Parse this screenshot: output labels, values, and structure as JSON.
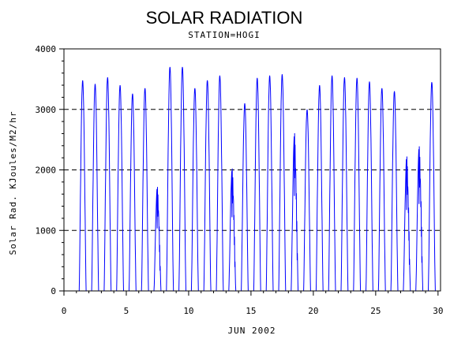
{
  "chart_data": {
    "type": "line",
    "title": "SOLAR RADIATION",
    "subtitle": "STATION=HOGI",
    "xlabel": "JUN 2002",
    "ylabel": "Solar Rad. KJoules/M2/hr",
    "xlim": [
      0,
      30.2
    ],
    "ylim": [
      0,
      4000
    ],
    "x_ticks": [
      0,
      5,
      10,
      15,
      20,
      25,
      30
    ],
    "y_ticks": [
      0,
      1000,
      2000,
      3000,
      4000
    ],
    "grid": "horizontal dashed",
    "daily_peaks": [
      {
        "day": 1,
        "peak": 3480
      },
      {
        "day": 2,
        "peak": 3420
      },
      {
        "day": 3,
        "peak": 3530
      },
      {
        "day": 4,
        "peak": 3400
      },
      {
        "day": 5,
        "peak": 3260
      },
      {
        "day": 6,
        "peak": 3350
      },
      {
        "day": 7,
        "peak": 1740
      },
      {
        "day": 8,
        "peak": 3700
      },
      {
        "day": 9,
        "peak": 3700
      },
      {
        "day": 10,
        "peak": 3350
      },
      {
        "day": 11,
        "peak": 3480
      },
      {
        "day": 12,
        "peak": 3560
      },
      {
        "day": 13,
        "peak": 2050
      },
      {
        "day": 14,
        "peak": 3100
      },
      {
        "day": 15,
        "peak": 3520
      },
      {
        "day": 16,
        "peak": 3560
      },
      {
        "day": 17,
        "peak": 3580
      },
      {
        "day": 18,
        "peak": 2640
      },
      {
        "day": 19,
        "peak": 3000
      },
      {
        "day": 20,
        "peak": 3400
      },
      {
        "day": 21,
        "peak": 3560
      },
      {
        "day": 22,
        "peak": 3530
      },
      {
        "day": 23,
        "peak": 3520
      },
      {
        "day": 24,
        "peak": 3460
      },
      {
        "day": 25,
        "peak": 3350
      },
      {
        "day": 26,
        "peak": 3300
      },
      {
        "day": 27,
        "peak": 2250
      },
      {
        "day": 28,
        "peak": 2420
      },
      {
        "day": 29,
        "peak": 3450
      }
    ],
    "series_color": "#0000ff"
  }
}
